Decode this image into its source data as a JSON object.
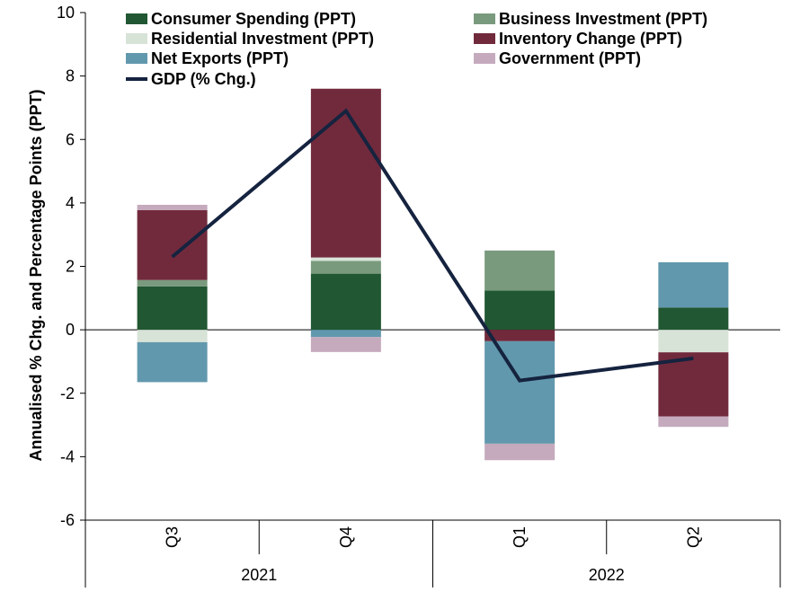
{
  "chart_data": {
    "type": "bar",
    "stacked": true,
    "ylabel": "Annualised % Chg. and Percentage Points (PPT)",
    "ylim": [
      -6,
      10
    ],
    "yticks": [
      10,
      8,
      6,
      4,
      2,
      0,
      -2,
      -4,
      -6
    ],
    "categories": [
      "Q3",
      "Q4",
      "Q1",
      "Q2"
    ],
    "groups": [
      {
        "label": "2021",
        "categories": [
          "Q3",
          "Q4"
        ]
      },
      {
        "label": "2022",
        "categories": [
          "Q1",
          "Q2"
        ]
      }
    ],
    "series": [
      {
        "name": "Consumer Spending (PPT)",
        "color": "#215732",
        "values": [
          1.37,
          1.77,
          1.24,
          0.7
        ]
      },
      {
        "name": "Business Investment (PPT)",
        "color": "#7a9a7e",
        "values": [
          0.2,
          0.4,
          1.26,
          0.0
        ]
      },
      {
        "name": "Residential Investment (PPT)",
        "color": "#d8e3d8",
        "values": [
          -0.39,
          0.11,
          0.0,
          -0.71
        ]
      },
      {
        "name": "Inventory Change (PPT)",
        "color": "#712a3c",
        "values": [
          2.2,
          5.32,
          -0.36,
          -2.02
        ]
      },
      {
        "name": "Net Exports (PPT)",
        "color": "#6298ad",
        "values": [
          -1.26,
          -0.23,
          -3.23,
          1.43
        ]
      },
      {
        "name": "Government (PPT)",
        "color": "#c5aabd",
        "values": [
          0.17,
          -0.47,
          -0.52,
          -0.33
        ]
      }
    ],
    "line": {
      "name": "GDP (% Chg.)",
      "color": "#15233f",
      "values": [
        2.3,
        6.9,
        -1.6,
        -0.9
      ]
    },
    "legend_position": "top"
  }
}
